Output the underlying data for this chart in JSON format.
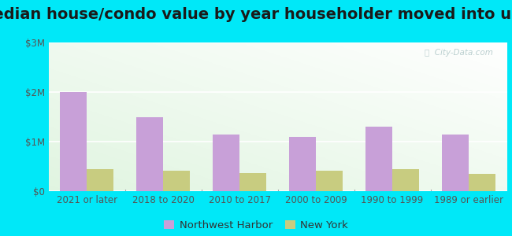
{
  "title": "Median house/condo value by year householder moved into unit",
  "categories": [
    "2021 or later",
    "2018 to 2020",
    "2010 to 2017",
    "2000 to 2009",
    "1990 to 1999",
    "1989 or earlier"
  ],
  "northwest_harbor": [
    2000000,
    1500000,
    1150000,
    1100000,
    1300000,
    1150000
  ],
  "new_york": [
    450000,
    420000,
    370000,
    420000,
    450000,
    350000
  ],
  "bar_color_nh": "#c8a0d8",
  "bar_color_ny": "#c8cc80",
  "background_outer": "#00e8f8",
  "ylim": [
    0,
    3000000
  ],
  "yticks": [
    0,
    1000000,
    2000000,
    3000000
  ],
  "ytick_labels": [
    "$0",
    "$1M",
    "$2M",
    "$3M"
  ],
  "legend_label_nh": "Northwest Harbor",
  "legend_label_ny": "New York",
  "watermark": "ⓘ  City-Data.com",
  "bar_width": 0.35,
  "title_fontsize": 14,
  "tick_fontsize": 8.5,
  "legend_fontsize": 9.5
}
